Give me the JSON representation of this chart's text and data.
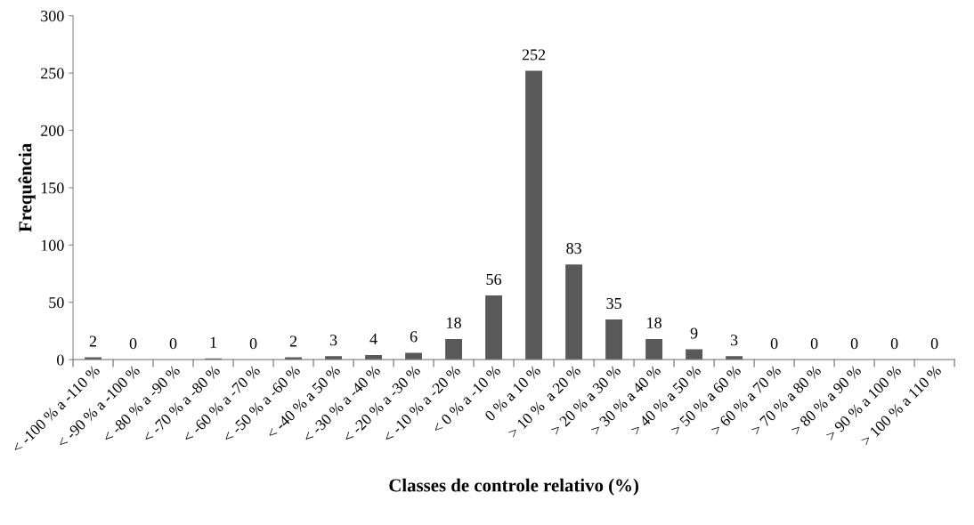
{
  "chart_data": {
    "type": "bar",
    "xlabel": "Classes de controle relativo (%)",
    "ylabel": "Frequência",
    "categories": [
      "< -100 % a -110 %",
      "< -90 % a -100 %",
      "< -80 % a -90 %",
      "< -70 % a -80 %",
      "< -60 % a -70 %",
      "< -50 % a -60 %",
      "< -40 % a 50 %",
      "< -30 % a -40 %",
      "< -20 % a -30 %",
      "< -10 % a -20 %",
      "< 0 % a -10 %",
      "0 % a 10 %",
      "> 10 %  a 20 %",
      "> 20 % a 30 %",
      "> 30 % a 40 %",
      "> 40 % a 50 %",
      "> 50 % a 60 %",
      "> 60 % a 70 %",
      "> 70 % a 80 %",
      "> 80 % a 90 %",
      "> 90 % a 100 %",
      "> 100 % a 110 %"
    ],
    "values": [
      2,
      0,
      0,
      1,
      0,
      2,
      3,
      4,
      6,
      18,
      56,
      252,
      83,
      35,
      18,
      9,
      3,
      0,
      0,
      0,
      0,
      0
    ],
    "color": "#595959",
    "ylim": [
      0,
      300
    ],
    "yticks": [
      0,
      50,
      100,
      150,
      200,
      250,
      300
    ],
    "grid": false,
    "data_labels": true
  }
}
